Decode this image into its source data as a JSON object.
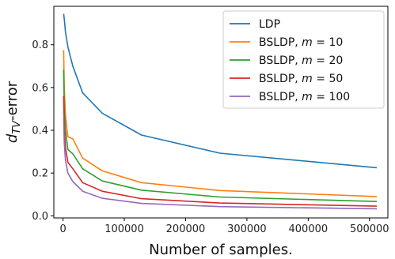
{
  "chart_data": {
    "type": "line",
    "xlabel": "Number of samples.",
    "ylabel_main": "d",
    "ylabel_sub": "TV",
    "ylabel_suffix": "-error",
    "xlim": [
      -15000,
      530000
    ],
    "ylim": [
      -0.01,
      0.98
    ],
    "xticks": [
      0,
      100000,
      200000,
      300000,
      400000,
      500000
    ],
    "xtick_labels": [
      "0",
      "100000",
      "200000",
      "300000",
      "400000",
      "500000"
    ],
    "yticks": [
      0.0,
      0.2,
      0.4,
      0.6,
      0.8
    ],
    "ytick_labels": [
      "0.0",
      "0.2",
      "0.4",
      "0.6",
      "0.8"
    ],
    "grid": false,
    "legend_position": "top-right",
    "x": [
      1000,
      2000,
      4000,
      8000,
      16000,
      32000,
      64000,
      128000,
      256000,
      512000
    ],
    "series": [
      {
        "name": "LDP",
        "name_prefix": "LDP",
        "m": "",
        "color": "#1f77b4",
        "values": [
          0.945,
          0.92,
          0.86,
          0.79,
          0.7,
          0.575,
          0.48,
          0.378,
          0.293,
          0.225
        ]
      },
      {
        "name": "BSLDP, m = 10",
        "name_prefix": "BSLDP, ",
        "m": "10",
        "color": "#ff7f0e",
        "values": [
          0.775,
          0.6,
          0.47,
          0.37,
          0.36,
          0.27,
          0.21,
          0.155,
          0.118,
          0.09
        ]
      },
      {
        "name": "BSLDP, m = 20",
        "name_prefix": "BSLDP, ",
        "m": "20",
        "color": "#2ca02c",
        "values": [
          0.685,
          0.51,
          0.4,
          0.31,
          0.29,
          0.22,
          0.163,
          0.12,
          0.088,
          0.067
        ]
      },
      {
        "name": "BSLDP, m = 50",
        "name_prefix": "BSLDP, ",
        "m": "50",
        "color": "#d62728",
        "values": [
          0.56,
          0.42,
          0.32,
          0.25,
          0.22,
          0.155,
          0.115,
          0.08,
          0.06,
          0.045
        ]
      },
      {
        "name": "BSLDP, m = 100",
        "name_prefix": "BSLDP, ",
        "m": "100",
        "color": "#9467bd",
        "values": [
          0.46,
          0.34,
          0.26,
          0.2,
          0.16,
          0.115,
          0.082,
          0.058,
          0.043,
          0.033
        ]
      }
    ]
  }
}
